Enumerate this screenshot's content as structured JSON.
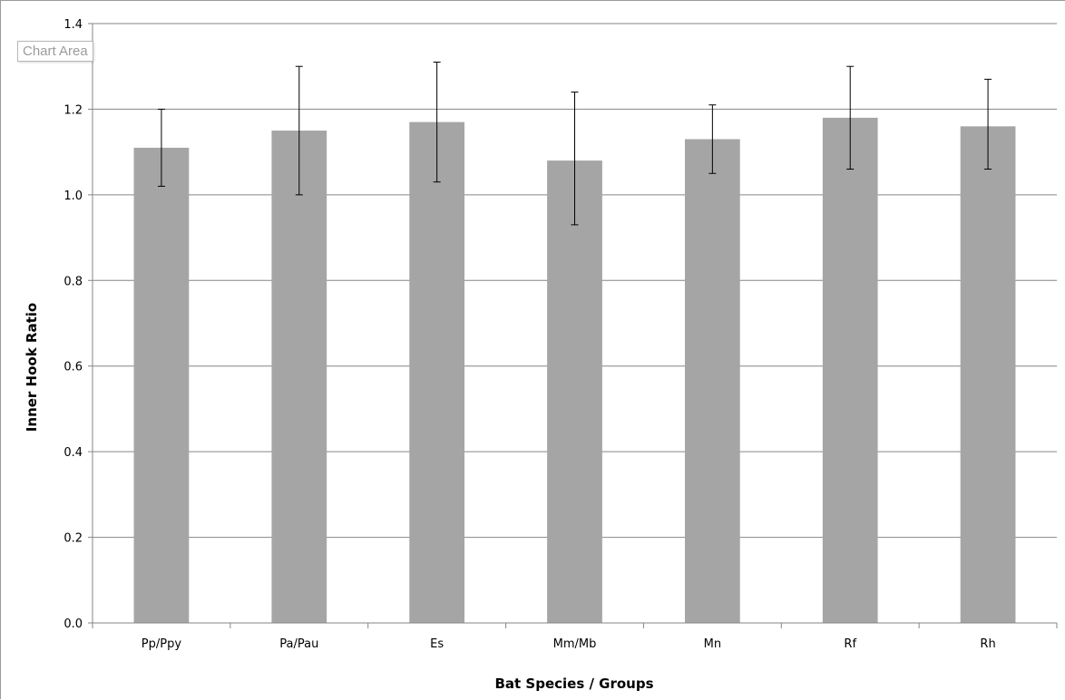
{
  "chart_area_label": "Chart Area",
  "chart_data": {
    "type": "bar",
    "title": "",
    "xlabel": "Bat Species / Groups",
    "ylabel": "Inner Hook Ratio",
    "categories": [
      "Pp/Ppy",
      "Pa/Pau",
      "Es",
      "Mm/Mb",
      "Mn",
      "Rf",
      "Rh"
    ],
    "values": [
      1.11,
      1.15,
      1.17,
      1.08,
      1.13,
      1.18,
      1.16
    ],
    "error_low": [
      1.02,
      1.0,
      1.03,
      0.93,
      1.05,
      1.06,
      1.06
    ],
    "error_high": [
      1.2,
      1.3,
      1.31,
      1.24,
      1.21,
      1.3,
      1.27
    ],
    "ylim": [
      0,
      1.4
    ],
    "yticks": [
      "0.0",
      "0.2",
      "0.4",
      "0.6",
      "0.8",
      "1.0",
      "1.2",
      "1.4"
    ],
    "ytick_values": [
      0,
      0.2,
      0.4,
      0.6,
      0.8,
      1.0,
      1.2,
      1.4
    ],
    "grid": true,
    "legend": "none",
    "bar_color": "#a5a5a5",
    "grid_color": "#868686"
  }
}
